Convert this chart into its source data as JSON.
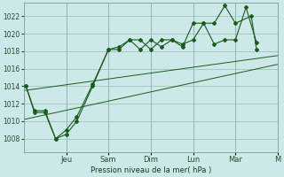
{
  "background_color": "#cce8e8",
  "grid_color": "#99bbbb",
  "line_color": "#1a5c1a",
  "ylabel": "Pression niveau de la mer( hPa )",
  "ylim": [
    1006.5,
    1023.5
  ],
  "yticks": [
    1008,
    1010,
    1012,
    1014,
    1016,
    1018,
    1020,
    1022
  ],
  "xlim": [
    0,
    24
  ],
  "x_tick_positions": [
    4,
    8,
    12,
    16,
    20,
    24
  ],
  "x_tick_labels": [
    "Jeu",
    "Sam",
    "Dim",
    "Lun",
    "Mar",
    "M"
  ],
  "line1_x": [
    0.2,
    1,
    2,
    3,
    4,
    5,
    6.5,
    8,
    9,
    10,
    11,
    12,
    13,
    14,
    15,
    16,
    17,
    18,
    19,
    20,
    21,
    22
  ],
  "line1_y": [
    1014,
    1011,
    1011,
    1008,
    1008.5,
    1010,
    1014,
    1018.2,
    1018.2,
    1019.3,
    1019.3,
    1018.2,
    1019.3,
    1019.3,
    1018.8,
    1019.3,
    1021.2,
    1018.8,
    1019.3,
    1019.3,
    1023.0,
    1019.0
  ],
  "line2_x": [
    0.2,
    1,
    2,
    3,
    4,
    5,
    6.5,
    8,
    9,
    10,
    11,
    12,
    13,
    14,
    15,
    16,
    17,
    18,
    19,
    20,
    21.5,
    22
  ],
  "line2_y": [
    1014,
    1011.2,
    1011.2,
    1008,
    1009,
    1010.5,
    1014.2,
    1018.2,
    1018.5,
    1019.3,
    1018.2,
    1019.3,
    1018.5,
    1019.3,
    1018.5,
    1021.2,
    1021.2,
    1021.2,
    1023.2,
    1021.2,
    1022.0,
    1018.2
  ],
  "trend1_x": [
    0,
    24
  ],
  "trend1_y": [
    1013.5,
    1017.5
  ],
  "trend2_x": [
    0,
    24
  ],
  "trend2_y": [
    1010.2,
    1016.5
  ]
}
